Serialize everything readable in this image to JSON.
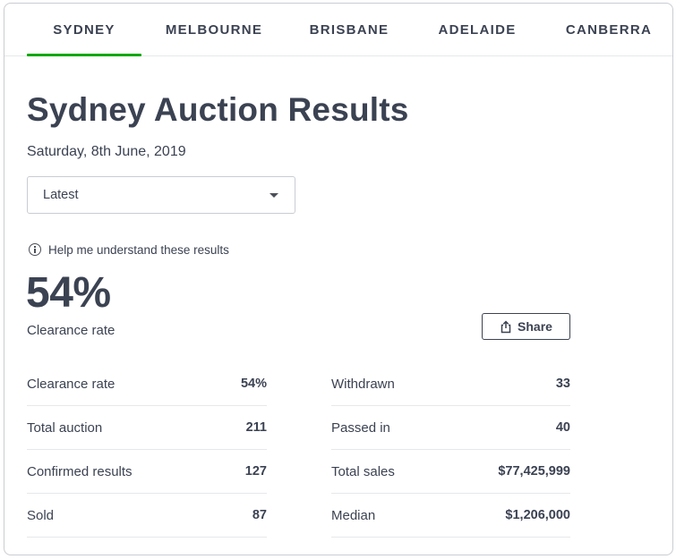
{
  "tabs": [
    "SYDNEY",
    "MELBOURNE",
    "BRISBANE",
    "ADELAIDE",
    "CANBERRA"
  ],
  "active_tab": "SYDNEY",
  "accent_color": "#0ea800",
  "page": {
    "title": "Sydney Auction Results",
    "date": "Saturday, 8th June, 2019"
  },
  "filter": {
    "selected": "Latest"
  },
  "help": {
    "label": "Help me understand these results"
  },
  "headline": {
    "value": "54%",
    "label": "Clearance rate"
  },
  "share": {
    "label": "Share"
  },
  "stats_left": [
    {
      "label": "Clearance rate",
      "value": "54%"
    },
    {
      "label": "Total auction",
      "value": "211"
    },
    {
      "label": "Confirmed results",
      "value": "127"
    },
    {
      "label": "Sold",
      "value": "87"
    }
  ],
  "stats_right": [
    {
      "label": "Withdrawn",
      "value": "33"
    },
    {
      "label": "Passed in",
      "value": "40"
    },
    {
      "label": "Total sales",
      "value": "$77,425,999"
    },
    {
      "label": "Median",
      "value": "$1,206,000"
    }
  ],
  "icons": {
    "help": "info-circle-icon",
    "share": "share-icon",
    "select": "caret-down-icon"
  }
}
